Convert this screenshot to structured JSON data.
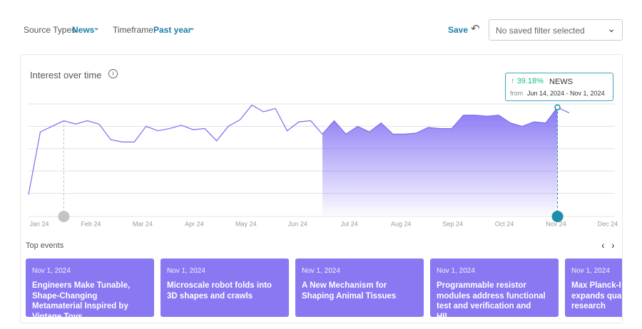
{
  "filters": {
    "source_label": "Source Types",
    "source_value": "News",
    "timeframe_label": "Timeframe",
    "timeframe_value": "Past year",
    "save": "Save",
    "saved_filter": "No saved filter selected"
  },
  "panel": {
    "title": "Interest over time",
    "events_title": "Top events"
  },
  "tooltip": {
    "change": "39.18%",
    "series": "NEWS",
    "from": "from",
    "range": "Jun 14, 2024 - Nov 1, 2024"
  },
  "chart_data": {
    "type": "line",
    "color": "#7b6cf0",
    "ylim": [
      0,
      100
    ],
    "yticks": [
      20,
      40,
      60,
      80,
      100
    ],
    "grid": true,
    "x_labels": [
      "Jan 24",
      "Feb 24",
      "Mar 24",
      "Apr 24",
      "May 24",
      "Jun 24",
      "Jul 24",
      "Aug 24",
      "Sep 24",
      "Oct 24",
      "Nov 24",
      "Dec 24"
    ],
    "values": [
      19,
      75,
      80,
      85,
      82,
      85,
      82,
      68,
      66,
      66,
      80,
      76,
      78,
      81,
      77,
      78,
      67,
      80,
      86,
      99,
      93,
      96,
      76,
      84,
      85,
      73,
      85,
      73,
      80,
      75,
      83,
      73,
      73,
      74,
      79,
      78,
      78,
      90,
      90,
      89,
      90,
      83,
      80,
      84,
      83,
      97,
      92
    ]
  },
  "events": [
    {
      "date": "Nov 1, 2024",
      "title": "Engineers Make Tunable, Shape-Changing Metamaterial Inspired by Vintage Toys"
    },
    {
      "date": "Nov 1, 2024",
      "title": "Microscale robot folds into 3D shapes and crawls"
    },
    {
      "date": "Nov 1, 2024",
      "title": "A New Mechanism for Shaping Animal Tissues"
    },
    {
      "date": "Nov 1, 2024",
      "title": "Programmable resistor modules address functional test and verification and HIL,…"
    },
    {
      "date": "Nov 1, 2024",
      "title": "Max Planck-I\nexpands qua\nresearch"
    }
  ]
}
